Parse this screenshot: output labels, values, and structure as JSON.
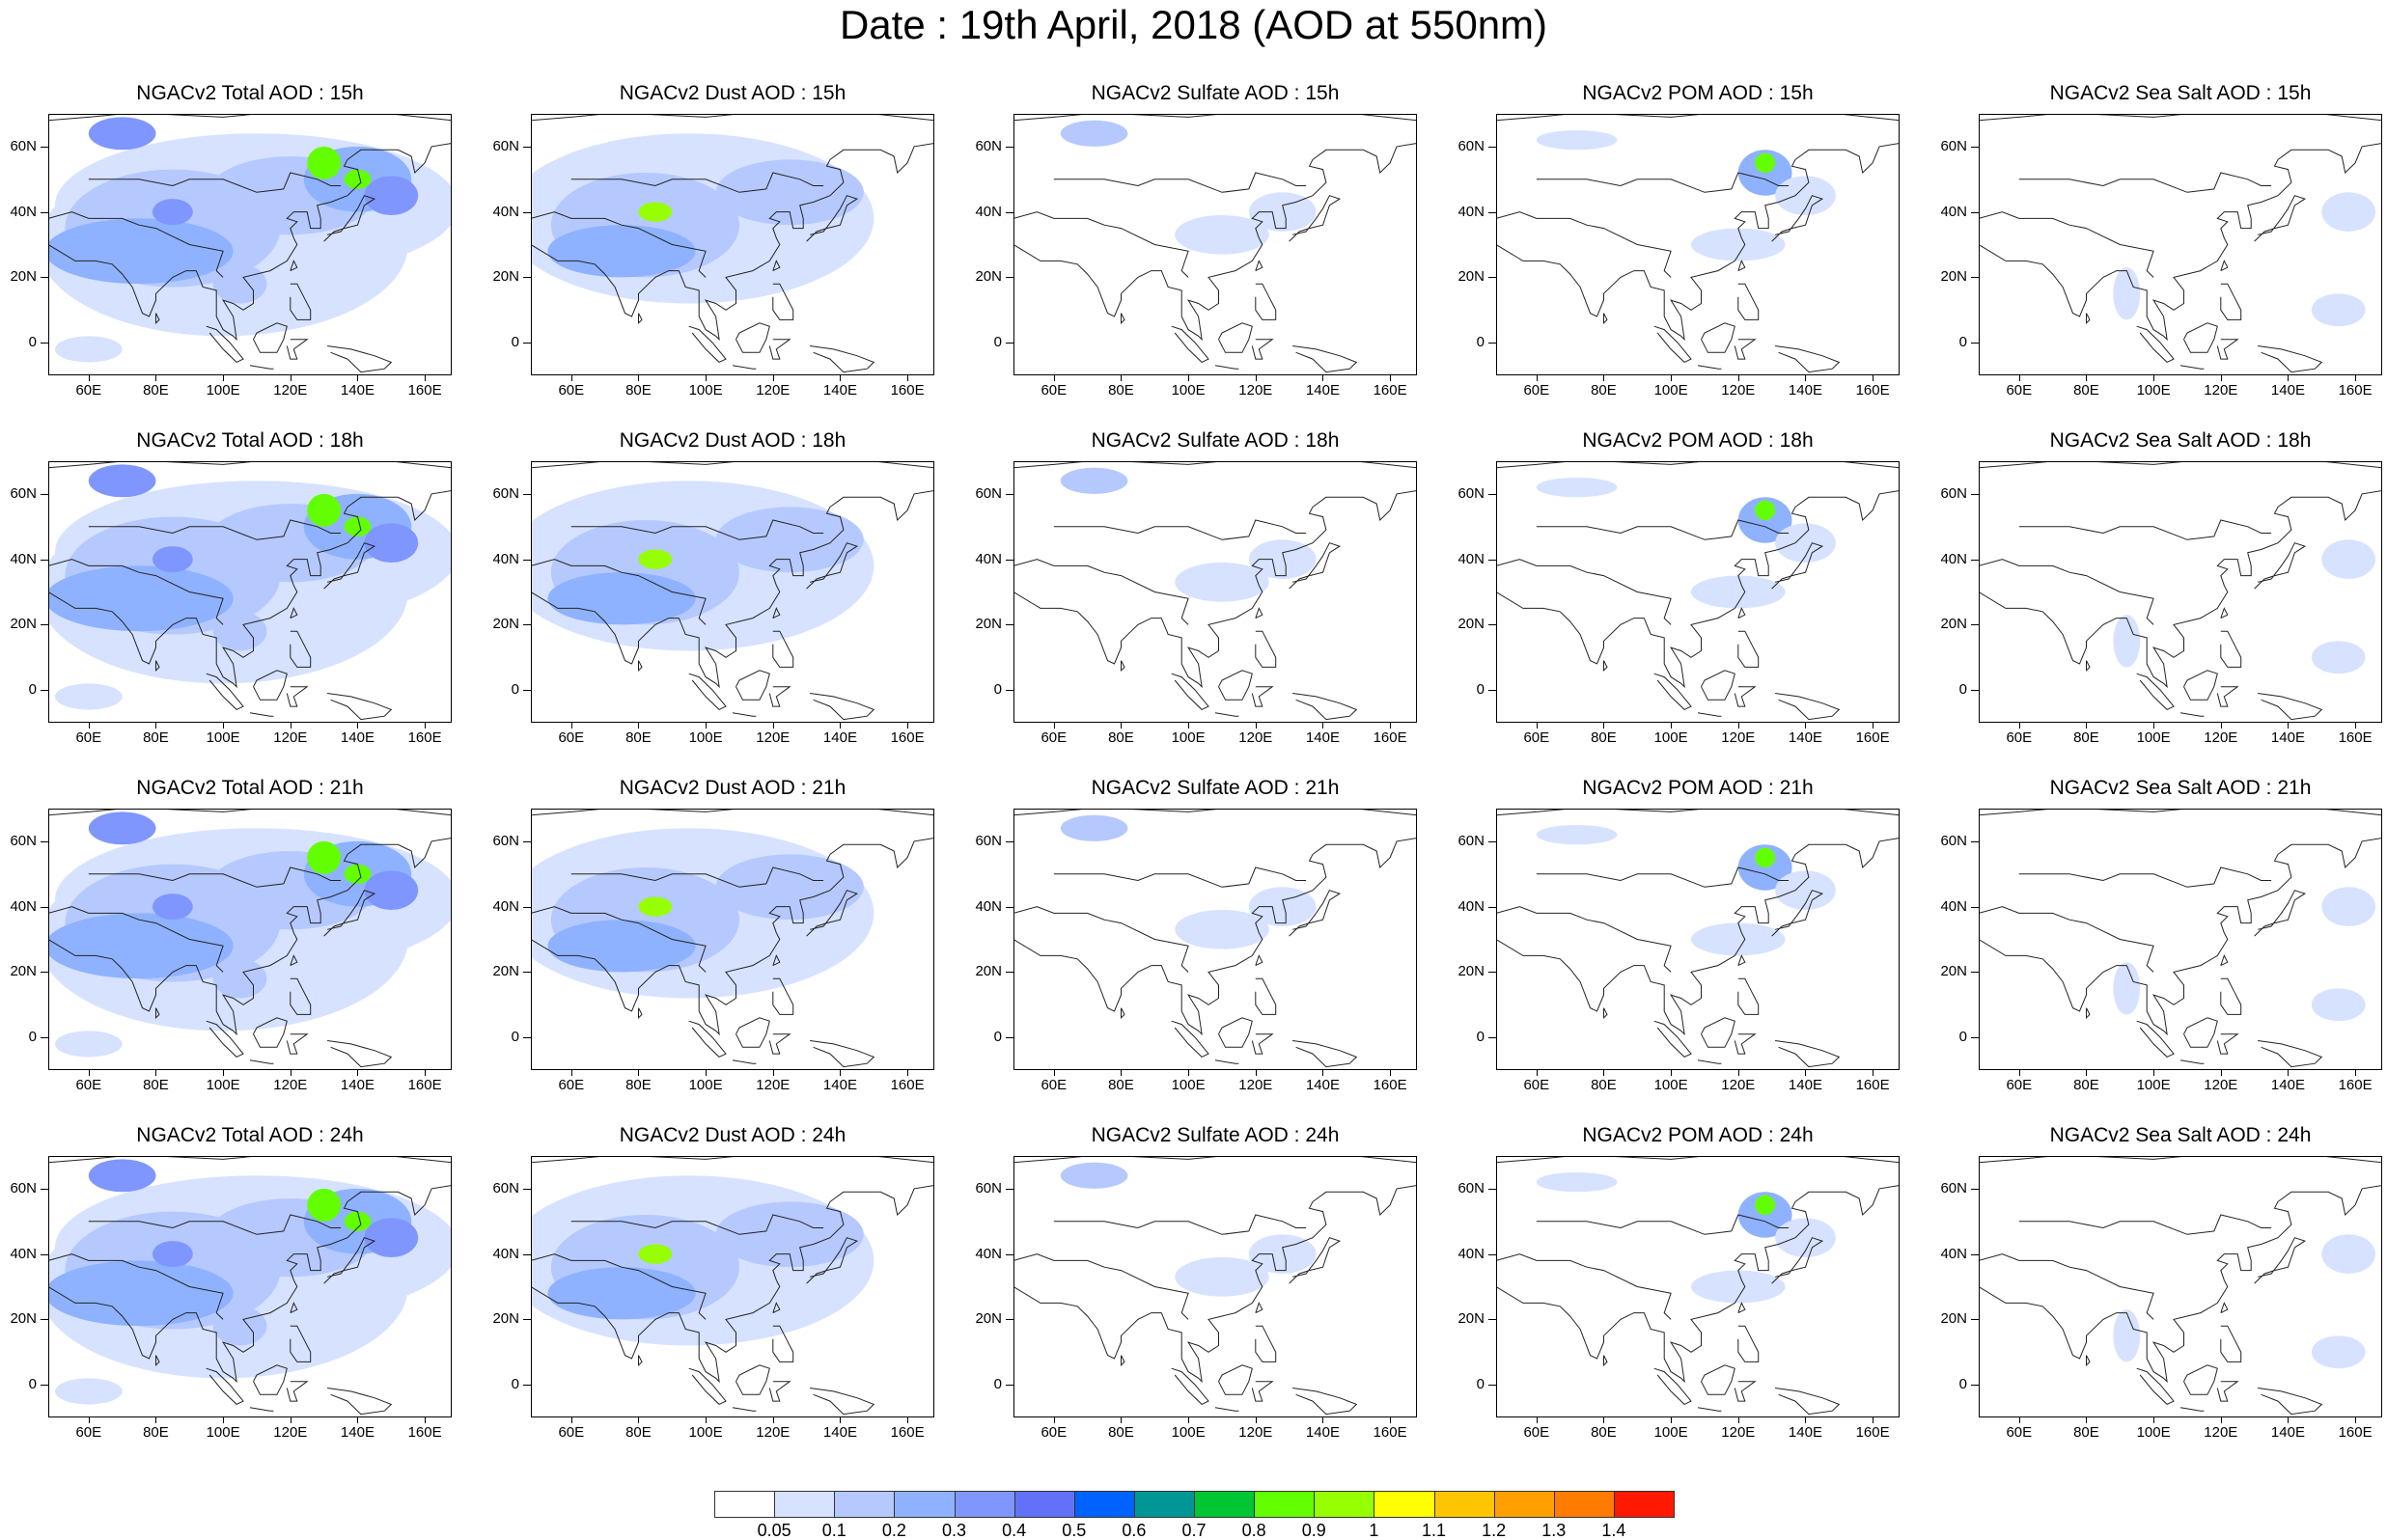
{
  "title": "Date : 19th April, 2018 (AOD at 550nm)",
  "axes": {
    "y_ticks": [
      "60N",
      "40N",
      "20N",
      "0"
    ],
    "x_ticks": [
      "60E",
      "80E",
      "100E",
      "120E",
      "140E",
      "160E"
    ],
    "lat_values": [
      60,
      40,
      20,
      0
    ],
    "lon_values": [
      60,
      80,
      100,
      120,
      140,
      160
    ],
    "lon_range": [
      48,
      168
    ],
    "lat_range": [
      -10,
      70
    ]
  },
  "colorbar": {
    "labels": [
      "0.05",
      "0.1",
      "0.2",
      "0.3",
      "0.4",
      "0.5",
      "0.6",
      "0.7",
      "0.8",
      "0.9",
      "1",
      "1.1",
      "1.2",
      "1.3",
      "1.4"
    ],
    "colors": [
      "#ffffff",
      "#d6e2ff",
      "#b5c9ff",
      "#8eb2ff",
      "#7f96ff",
      "#6370f8",
      "#0063ff",
      "#009696",
      "#00c633",
      "#63ff00",
      "#96ff00",
      "#c6ff33",
      "#ffff00",
      "#ffc600",
      "#ffa000",
      "#ff7c00",
      "#ff1900"
    ]
  },
  "panels": [
    {
      "title": "NGACv2 Total AOD : 15h",
      "species": "total",
      "hour": "15h"
    },
    {
      "title": "NGACv2 Dust AOD : 15h",
      "species": "dust",
      "hour": "15h"
    },
    {
      "title": "NGACv2 Sulfate AOD : 15h",
      "species": "sulfate",
      "hour": "15h"
    },
    {
      "title": "NGACv2 POM AOD : 15h",
      "species": "pom",
      "hour": "15h"
    },
    {
      "title": "NGACv2 Sea Salt AOD : 15h",
      "species": "seasalt",
      "hour": "15h"
    },
    {
      "title": "NGACv2 Total AOD : 18h",
      "species": "total",
      "hour": "18h"
    },
    {
      "title": "NGACv2 Dust AOD : 18h",
      "species": "dust",
      "hour": "18h"
    },
    {
      "title": "NGACv2 Sulfate AOD : 18h",
      "species": "sulfate",
      "hour": "18h"
    },
    {
      "title": "NGACv2 POM AOD : 18h",
      "species": "pom",
      "hour": "18h"
    },
    {
      "title": "NGACv2 Sea Salt AOD : 18h",
      "species": "seasalt",
      "hour": "18h"
    },
    {
      "title": "NGACv2 Total AOD : 21h",
      "species": "total",
      "hour": "21h"
    },
    {
      "title": "NGACv2 Dust AOD : 21h",
      "species": "dust",
      "hour": "21h"
    },
    {
      "title": "NGACv2 Sulfate AOD : 21h",
      "species": "sulfate",
      "hour": "21h"
    },
    {
      "title": "NGACv2 POM AOD : 21h",
      "species": "pom",
      "hour": "21h"
    },
    {
      "title": "NGACv2 Sea Salt AOD : 21h",
      "species": "seasalt",
      "hour": "21h"
    },
    {
      "title": "NGACv2 Total AOD : 24h",
      "species": "total",
      "hour": "24h"
    },
    {
      "title": "NGACv2 Dust AOD : 24h",
      "species": "dust",
      "hour": "24h"
    },
    {
      "title": "NGACv2 Sulfate AOD : 24h",
      "species": "sulfate",
      "hour": "24h"
    },
    {
      "title": "NGACv2 POM AOD : 24h",
      "species": "pom",
      "hour": "24h"
    },
    {
      "title": "NGACv2 Sea Salt  AOD : 24h",
      "species": "seasalt",
      "hour": "24h"
    }
  ]
}
